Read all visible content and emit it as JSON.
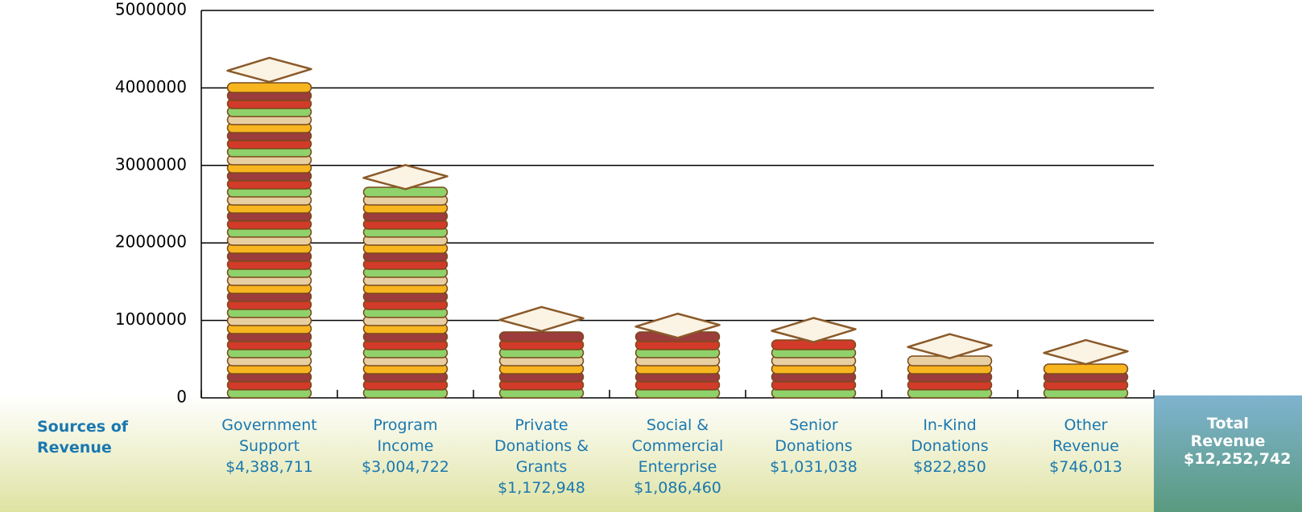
{
  "chart_data": {
    "type": "bar",
    "axis_title": "Sources of Revenue",
    "categories": [
      "Government Support",
      "Program Income",
      "Private Donations & Grants",
      "Social & Commercial Enterprise",
      "Senior Donations",
      "In-Kind Donations",
      "Other Revenue"
    ],
    "values": [
      4388711,
      3004722,
      1172948,
      1086460,
      1031038,
      822850,
      746013
    ],
    "value_labels": [
      "$4,388,711",
      "$3,004,722",
      "$1,172,948",
      "$1,086,460",
      "$1,031,038",
      "$822,850",
      "$746,013"
    ],
    "ylim": [
      0,
      5000000
    ],
    "yticks": [
      0,
      1000000,
      2000000,
      3000000,
      4000000,
      5000000
    ],
    "grid": true,
    "total": {
      "label": "Total Revenue",
      "value": 12252742,
      "value_label": "$12,252,742"
    }
  }
}
